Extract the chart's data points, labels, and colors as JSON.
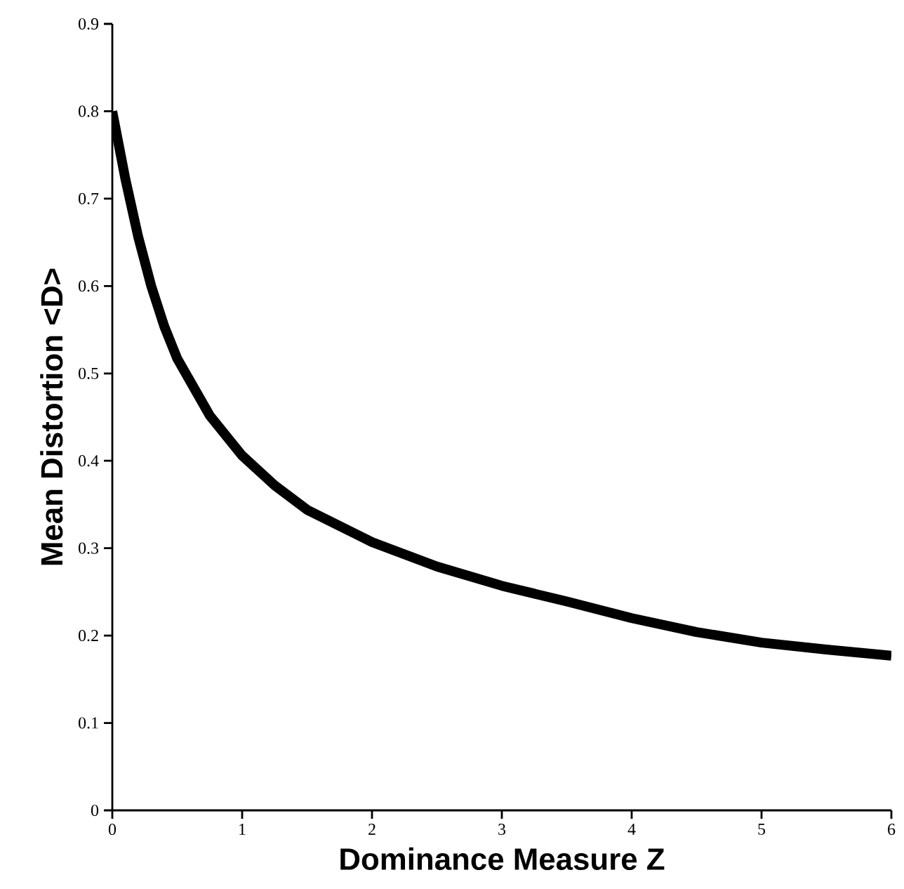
{
  "chart_data": {
    "type": "line",
    "xlabel": "Dominance Measure Z",
    "ylabel": "Mean Distortion <D>",
    "xlim": [
      0,
      6
    ],
    "ylim": [
      0,
      0.9
    ],
    "xticks": [
      0,
      1,
      2,
      3,
      4,
      5,
      6
    ],
    "yticks": [
      0,
      0.1,
      0.2,
      0.3,
      0.4,
      0.5,
      0.6,
      0.7,
      0.8,
      0.9
    ],
    "marker": "none",
    "line_style": "solid",
    "series": [
      {
        "color": "#000000",
        "x": [
          0,
          0.1,
          0.2,
          0.3,
          0.4,
          0.5,
          0.75,
          1,
          1.25,
          1.5,
          2,
          2.5,
          3,
          3.5,
          4,
          4.5,
          5,
          5.5,
          6
        ],
        "values": [
          0.8,
          0.723,
          0.656,
          0.6,
          0.554,
          0.517,
          0.452,
          0.406,
          0.372,
          0.344,
          0.307,
          0.279,
          0.257,
          0.239,
          0.22,
          0.204,
          0.192,
          0.184,
          0.177
        ]
      }
    ]
  }
}
